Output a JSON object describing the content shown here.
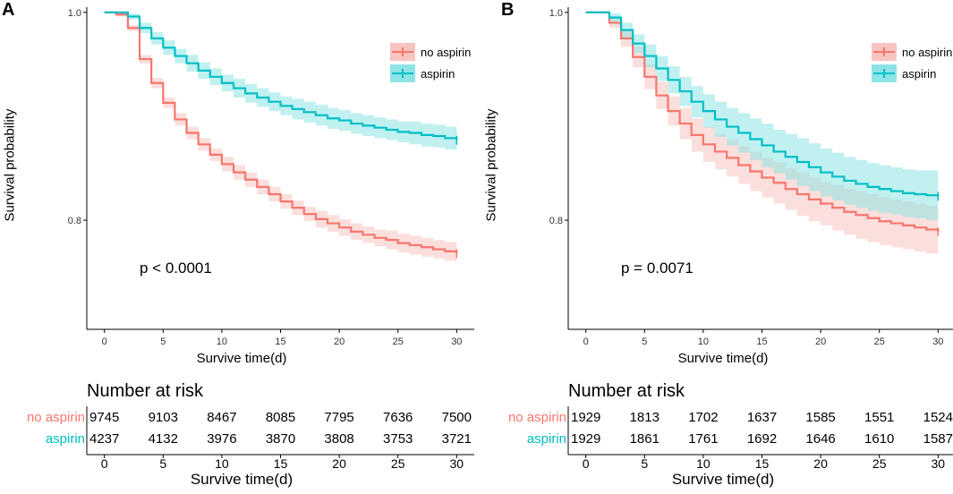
{
  "colors": {
    "no_aspirin": "#f8766d",
    "aspirin": "#00bfc4",
    "no_aspirin_band": "#f8c4c0",
    "aspirin_band": "#8ee3e6"
  },
  "panels": [
    {
      "label": "A",
      "pvalue": "p < 0.0001",
      "risk_title": "Number at risk",
      "risk_groups": [
        "no aspirin",
        "aspirin"
      ],
      "risk_table": [
        [
          9745,
          9103,
          8467,
          8085,
          7795,
          7636,
          7500
        ],
        [
          4237,
          4132,
          3976,
          3870,
          3808,
          3753,
          3721
        ]
      ],
      "risk_xlabel": "Survive time(d)"
    },
    {
      "label": "B",
      "pvalue": "p = 0.0071",
      "risk_title": "Number at risk",
      "risk_groups": [
        "no aspirin",
        "aspirin"
      ],
      "risk_table": [
        [
          1929,
          1813,
          1702,
          1637,
          1585,
          1551,
          1524
        ],
        [
          1929,
          1861,
          1761,
          1692,
          1646,
          1610,
          1587
        ]
      ],
      "risk_xlabel": "Survive time(d)"
    }
  ],
  "chart_data": [
    {
      "type": "line",
      "title": "",
      "xlabel": "Survive time(d)",
      "ylabel": "Survival probability",
      "xlim": [
        -1.5,
        31.5
      ],
      "ylim": [
        0.695,
        1.005
      ],
      "xticks": [
        0,
        5,
        10,
        15,
        20,
        25,
        30
      ],
      "yticks": [
        0.8,
        1.0
      ],
      "ytick_labels": [
        "0.8",
        "1.0"
      ],
      "legend": [
        "no aspirin",
        "aspirin"
      ],
      "legend_position": "top-right",
      "series": [
        {
          "name": "no aspirin",
          "x": [
            0,
            1,
            2,
            3,
            4,
            5,
            6,
            7,
            8,
            9,
            10,
            11,
            12,
            13,
            14,
            15,
            16,
            17,
            18,
            19,
            20,
            21,
            22,
            23,
            24,
            25,
            26,
            27,
            28,
            29,
            30
          ],
          "y": [
            1.0,
            0.998,
            0.985,
            0.955,
            0.932,
            0.913,
            0.897,
            0.884,
            0.873,
            0.863,
            0.854,
            0.846,
            0.839,
            0.832,
            0.825,
            0.818,
            0.812,
            0.806,
            0.801,
            0.797,
            0.793,
            0.789,
            0.786,
            0.783,
            0.781,
            0.778,
            0.776,
            0.774,
            0.772,
            0.77,
            0.768
          ],
          "lower": [
            1.0,
            0.996,
            0.982,
            0.951,
            0.927,
            0.908,
            0.891,
            0.878,
            0.867,
            0.857,
            0.847,
            0.839,
            0.832,
            0.825,
            0.818,
            0.811,
            0.805,
            0.799,
            0.793,
            0.789,
            0.785,
            0.781,
            0.778,
            0.775,
            0.772,
            0.769,
            0.767,
            0.765,
            0.763,
            0.761,
            0.759
          ],
          "upper": [
            1.0,
            1.0,
            0.988,
            0.959,
            0.937,
            0.918,
            0.903,
            0.89,
            0.879,
            0.869,
            0.861,
            0.853,
            0.846,
            0.839,
            0.832,
            0.825,
            0.819,
            0.813,
            0.809,
            0.805,
            0.801,
            0.797,
            0.794,
            0.791,
            0.79,
            0.787,
            0.785,
            0.783,
            0.781,
            0.779,
            0.777
          ]
        },
        {
          "name": "aspirin",
          "x": [
            0,
            1,
            2,
            3,
            4,
            5,
            6,
            7,
            8,
            9,
            10,
            11,
            12,
            13,
            14,
            15,
            16,
            17,
            18,
            19,
            20,
            21,
            22,
            23,
            24,
            25,
            26,
            27,
            28,
            29,
            30
          ],
          "y": [
            1.0,
            1.0,
            0.996,
            0.985,
            0.975,
            0.966,
            0.958,
            0.951,
            0.944,
            0.938,
            0.932,
            0.927,
            0.922,
            0.918,
            0.914,
            0.91,
            0.907,
            0.904,
            0.901,
            0.898,
            0.896,
            0.893,
            0.891,
            0.889,
            0.887,
            0.885,
            0.884,
            0.882,
            0.881,
            0.879,
            0.877
          ],
          "lower": [
            1.0,
            1.0,
            0.993,
            0.98,
            0.969,
            0.959,
            0.951,
            0.943,
            0.936,
            0.93,
            0.924,
            0.918,
            0.913,
            0.909,
            0.905,
            0.901,
            0.897,
            0.894,
            0.891,
            0.888,
            0.886,
            0.883,
            0.881,
            0.879,
            0.877,
            0.875,
            0.873,
            0.871,
            0.87,
            0.868,
            0.866
          ],
          "upper": [
            1.0,
            1.0,
            0.999,
            0.99,
            0.981,
            0.973,
            0.965,
            0.959,
            0.952,
            0.946,
            0.94,
            0.936,
            0.931,
            0.927,
            0.923,
            0.919,
            0.917,
            0.914,
            0.911,
            0.908,
            0.906,
            0.903,
            0.901,
            0.899,
            0.897,
            0.895,
            0.895,
            0.893,
            0.892,
            0.89,
            0.888
          ]
        }
      ]
    },
    {
      "type": "line",
      "title": "",
      "xlabel": "Survive time(d)",
      "ylabel": "Survival probability",
      "xlim": [
        -1.5,
        31.5
      ],
      "ylim": [
        0.695,
        1.005
      ],
      "xticks": [
        0,
        5,
        10,
        15,
        20,
        25,
        30
      ],
      "yticks": [
        0.8,
        1.0
      ],
      "ytick_labels": [
        "0.8",
        "1.0"
      ],
      "legend": [
        "no aspirin",
        "aspirin"
      ],
      "legend_position": "top-right",
      "series": [
        {
          "name": "no aspirin",
          "x": [
            0,
            1,
            2,
            3,
            4,
            5,
            6,
            7,
            8,
            9,
            10,
            11,
            12,
            13,
            14,
            15,
            16,
            17,
            18,
            19,
            20,
            21,
            22,
            23,
            24,
            25,
            26,
            27,
            28,
            29,
            30
          ],
          "y": [
            1.0,
            1.0,
            0.99,
            0.975,
            0.957,
            0.938,
            0.92,
            0.905,
            0.893,
            0.882,
            0.873,
            0.866,
            0.86,
            0.853,
            0.847,
            0.841,
            0.836,
            0.83,
            0.825,
            0.82,
            0.816,
            0.812,
            0.808,
            0.805,
            0.802,
            0.799,
            0.797,
            0.795,
            0.793,
            0.791,
            0.789
          ],
          "lower": [
            1.0,
            1.0,
            0.985,
            0.967,
            0.947,
            0.926,
            0.907,
            0.891,
            0.878,
            0.866,
            0.856,
            0.849,
            0.842,
            0.835,
            0.828,
            0.822,
            0.816,
            0.81,
            0.804,
            0.799,
            0.795,
            0.79,
            0.786,
            0.782,
            0.779,
            0.776,
            0.774,
            0.772,
            0.77,
            0.768,
            0.766
          ],
          "upper": [
            1.0,
            1.0,
            0.995,
            0.983,
            0.967,
            0.95,
            0.933,
            0.919,
            0.908,
            0.898,
            0.89,
            0.883,
            0.878,
            0.871,
            0.866,
            0.86,
            0.856,
            0.85,
            0.846,
            0.841,
            0.837,
            0.834,
            0.83,
            0.828,
            0.825,
            0.822,
            0.82,
            0.818,
            0.816,
            0.814,
            0.812
          ]
        },
        {
          "name": "aspirin",
          "x": [
            0,
            1,
            2,
            3,
            4,
            5,
            6,
            7,
            8,
            9,
            10,
            11,
            12,
            13,
            14,
            15,
            16,
            17,
            18,
            19,
            20,
            21,
            22,
            23,
            24,
            25,
            26,
            27,
            28,
            29,
            30
          ],
          "y": [
            1.0,
            1.0,
            0.995,
            0.983,
            0.97,
            0.958,
            0.946,
            0.935,
            0.924,
            0.914,
            0.905,
            0.897,
            0.89,
            0.884,
            0.878,
            0.872,
            0.866,
            0.861,
            0.856,
            0.851,
            0.846,
            0.842,
            0.838,
            0.835,
            0.832,
            0.83,
            0.828,
            0.826,
            0.825,
            0.824,
            0.823
          ],
          "lower": [
            1.0,
            1.0,
            0.991,
            0.976,
            0.961,
            0.947,
            0.934,
            0.922,
            0.91,
            0.899,
            0.889,
            0.88,
            0.872,
            0.865,
            0.858,
            0.851,
            0.845,
            0.839,
            0.833,
            0.828,
            0.823,
            0.819,
            0.815,
            0.812,
            0.809,
            0.807,
            0.805,
            0.803,
            0.802,
            0.8,
            0.798
          ],
          "upper": [
            1.0,
            1.0,
            0.999,
            0.99,
            0.979,
            0.969,
            0.958,
            0.948,
            0.938,
            0.929,
            0.921,
            0.914,
            0.908,
            0.903,
            0.898,
            0.893,
            0.887,
            0.883,
            0.879,
            0.874,
            0.869,
            0.865,
            0.861,
            0.858,
            0.855,
            0.853,
            0.851,
            0.849,
            0.848,
            0.848,
            0.848
          ]
        }
      ]
    }
  ]
}
